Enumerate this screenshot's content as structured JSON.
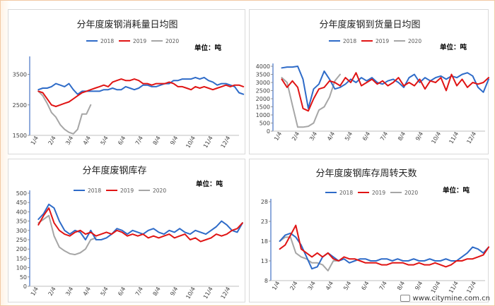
{
  "colors": {
    "s2018": "#2e6bc8",
    "s2019": "#e01414",
    "s2020": "#a6a6a6"
  },
  "watermark": {
    "text": "www.citymine.com.cn",
    "icon": "citymine-logo-icon"
  },
  "chart_data": [
    {
      "id": "consumption",
      "type": "line",
      "title": "分年度废钢消耗量日均图",
      "unit": "单位：吨",
      "xlabel": "",
      "ylabel": "",
      "categories": [
        "1/4",
        "2/4",
        "3/4",
        "4/4",
        "5/4",
        "6/4",
        "7/4",
        "8/4",
        "9/4",
        "10/4",
        "11/4",
        "12/4"
      ],
      "yticks": [
        1500,
        2500,
        3500
      ],
      "ylim": [
        1500,
        4000
      ],
      "grid": false,
      "legend": "top",
      "series": [
        {
          "name": "2018",
          "x": [
            0,
            0.25,
            0.5,
            0.75,
            1,
            1.25,
            1.5,
            1.75,
            2,
            2.25,
            2.5,
            2.75,
            3,
            3.25,
            3.5,
            3.75,
            4,
            4.25,
            4.5,
            4.75,
            5,
            5.25,
            5.5,
            5.75,
            6,
            6.25,
            6.5,
            6.75,
            7,
            7.25,
            7.5,
            7.75,
            8,
            8.25,
            8.5,
            8.75,
            9,
            9.25,
            9.5,
            9.75,
            10,
            10.25,
            10.5,
            10.75,
            11,
            11.25,
            11.5,
            11.75
          ],
          "values": [
            3000,
            3050,
            3050,
            3100,
            3200,
            3150,
            3100,
            3200,
            3000,
            2850,
            2950,
            2950,
            2950,
            2950,
            2950,
            3000,
            3000,
            3050,
            3000,
            3000,
            3100,
            3050,
            3000,
            3050,
            3150,
            3150,
            3100,
            3100,
            3150,
            3200,
            3200,
            3300,
            3300,
            3350,
            3350,
            3350,
            3400,
            3350,
            3400,
            3300,
            3250,
            3150,
            3200,
            3200,
            3150,
            3100,
            2900,
            2850
          ]
        },
        {
          "name": "2019",
          "x": [
            0,
            0.25,
            0.5,
            0.75,
            1,
            1.25,
            1.5,
            1.75,
            2,
            2.25,
            2.5,
            2.75,
            3,
            3.25,
            3.5,
            3.75,
            4,
            4.25,
            4.5,
            4.75,
            5,
            5.25,
            5.5,
            5.75,
            6,
            6.25,
            6.5,
            6.75,
            7,
            7.25,
            7.5,
            7.75,
            8,
            8.25,
            8.5,
            8.75,
            9,
            9.25,
            9.5,
            9.75,
            10,
            10.25,
            10.5,
            10.75,
            11,
            11.25,
            11.5,
            11.75
          ],
          "values": [
            2950,
            2900,
            2700,
            2500,
            2450,
            2500,
            2550,
            2600,
            2700,
            2800,
            2900,
            2950,
            3000,
            3050,
            3100,
            3150,
            3100,
            3250,
            3300,
            3350,
            3300,
            3300,
            3350,
            3300,
            3200,
            3200,
            3150,
            3200,
            3200,
            3200,
            3250,
            3200,
            3100,
            3100,
            3050,
            3000,
            3100,
            3050,
            3100,
            3050,
            3000,
            3050,
            3100,
            3150,
            3100,
            3150,
            3150,
            3100
          ]
        },
        {
          "name": "2020",
          "x": [
            0,
            0.25,
            0.5,
            0.75,
            1,
            1.25,
            1.5,
            1.75,
            2,
            2.25,
            2.5,
            2.75,
            3
          ],
          "values": [
            2950,
            2800,
            2550,
            2250,
            2100,
            1850,
            1700,
            1600,
            1550,
            1700,
            2200,
            2200,
            2500
          ]
        }
      ]
    },
    {
      "id": "arrivals",
      "type": "line",
      "title": "分年度废钢到货量日均图",
      "unit": "单位：吨",
      "xlabel": "",
      "ylabel": "",
      "categories": [
        "1/4",
        "2/4",
        "3/4",
        "4/4",
        "5/4",
        "6/4",
        "7/4",
        "8/4",
        "9/4",
        "10/4",
        "11/4",
        "12/4"
      ],
      "yticks": [
        0,
        500,
        1000,
        1500,
        2000,
        2500,
        3000,
        3500,
        4000
      ],
      "ylim": [
        0,
        4000
      ],
      "grid": false,
      "legend": "top",
      "series": [
        {
          "name": "2018",
          "x": [
            0,
            0.3,
            0.6,
            0.9,
            1.2,
            1.5,
            1.8,
            2.1,
            2.4,
            2.7,
            3,
            3.3,
            3.6,
            3.9,
            4.2,
            4.5,
            4.8,
            5.1,
            5.4,
            5.7,
            6,
            6.3,
            6.6,
            6.9,
            7.2,
            7.5,
            7.8,
            8.1,
            8.4,
            8.7,
            9,
            9.3,
            9.6,
            9.9,
            10.2,
            10.5,
            10.8,
            11.1,
            11.4,
            11.7
          ],
          "values": [
            3900,
            3950,
            3950,
            4000,
            3200,
            1400,
            2600,
            2900,
            3700,
            3200,
            2600,
            2700,
            2900,
            3200,
            3000,
            3300,
            3100,
            3300,
            3000,
            2900,
            3100,
            3200,
            3000,
            2700,
            3300,
            3500,
            3000,
            3300,
            3100,
            3300,
            3400,
            3200,
            3400,
            3300,
            3500,
            3600,
            3400,
            2700,
            2400,
            3200
          ]
        },
        {
          "name": "2019",
          "x": [
            0,
            0.3,
            0.6,
            0.9,
            1.2,
            1.5,
            1.8,
            2.1,
            2.4,
            2.7,
            3,
            3.3,
            3.6,
            3.9,
            4.2,
            4.5,
            4.8,
            5.1,
            5.4,
            5.7,
            6,
            6.3,
            6.6,
            6.9,
            7.2,
            7.5,
            7.8,
            8.1,
            8.4,
            8.7,
            9,
            9.3,
            9.6,
            9.9,
            10.2,
            10.5,
            10.8,
            11.1,
            11.4,
            11.7
          ],
          "values": [
            3200,
            2700,
            3100,
            2700,
            1400,
            1250,
            2000,
            2600,
            2700,
            3100,
            3000,
            2800,
            3300,
            3000,
            3600,
            2800,
            3000,
            3200,
            2900,
            3100,
            2800,
            3000,
            3300,
            2800,
            3000,
            2800,
            3200,
            2600,
            3100,
            3000,
            3300,
            2500,
            3500,
            2800,
            3200,
            2700,
            3000,
            2900,
            3000,
            3300
          ]
        },
        {
          "name": "2020",
          "x": [
            0,
            0.3,
            0.6,
            0.9,
            1.2,
            1.5,
            1.8,
            2.1,
            2.4,
            2.7,
            3,
            3.3
          ],
          "values": [
            3300,
            3000,
            1600,
            250,
            250,
            300,
            500,
            1300,
            1500,
            2100,
            3100,
            3500
          ]
        }
      ]
    },
    {
      "id": "inventory",
      "type": "line",
      "title": "分年度废钢库存",
      "unit": "单位：吨",
      "xlabel": "",
      "ylabel": "",
      "categories": [
        "1/4",
        "2/4",
        "3/4",
        "4/4",
        "5/4",
        "6/4",
        "7/4",
        "8/4",
        "9/4",
        "10/4",
        "11/4",
        "12/4"
      ],
      "yticks": [
        0,
        50,
        100,
        150,
        200,
        250,
        300,
        350,
        400,
        450,
        500
      ],
      "ylim": [
        0,
        500
      ],
      "grid": false,
      "legend": "top",
      "series": [
        {
          "name": "2018",
          "x": [
            0,
            0.3,
            0.6,
            0.9,
            1.2,
            1.5,
            1.8,
            2.1,
            2.4,
            2.7,
            3,
            3.3,
            3.6,
            3.9,
            4.2,
            4.5,
            4.8,
            5.1,
            5.4,
            5.7,
            6,
            6.3,
            6.6,
            6.9,
            7.2,
            7.5,
            7.8,
            8.1,
            8.4,
            8.7,
            9,
            9.3,
            9.6,
            9.9,
            10.2,
            10.5,
            10.8,
            11.1,
            11.4,
            11.7
          ],
          "values": [
            360,
            390,
            440,
            420,
            350,
            300,
            280,
            300,
            290,
            250,
            300,
            250,
            250,
            260,
            280,
            310,
            300,
            280,
            300,
            290,
            280,
            300,
            310,
            290,
            280,
            300,
            290,
            310,
            290,
            280,
            300,
            290,
            280,
            300,
            320,
            350,
            330,
            300,
            290,
            340
          ]
        },
        {
          "name": "2019",
          "x": [
            0,
            0.3,
            0.6,
            0.9,
            1.2,
            1.5,
            1.8,
            2.1,
            2.4,
            2.7,
            3,
            3.3,
            3.6,
            3.9,
            4.2,
            4.5,
            4.8,
            5.1,
            5.4,
            5.7,
            6,
            6.3,
            6.6,
            6.9,
            7.2,
            7.5,
            7.8,
            8.1,
            8.4,
            8.7,
            9,
            9.3,
            9.6,
            9.9,
            10.2,
            10.5,
            10.8,
            11.1,
            11.4,
            11.7
          ],
          "values": [
            330,
            380,
            420,
            340,
            300,
            280,
            270,
            290,
            300,
            280,
            290,
            270,
            280,
            290,
            280,
            300,
            290,
            270,
            280,
            270,
            280,
            260,
            270,
            260,
            270,
            280,
            260,
            270,
            280,
            250,
            260,
            240,
            250,
            260,
            280,
            270,
            280,
            300,
            310,
            340
          ]
        },
        {
          "name": "2020",
          "x": [
            0,
            0.3,
            0.6,
            0.9,
            1.2,
            1.5,
            1.8,
            2.1,
            2.4,
            2.7,
            3,
            3.3
          ],
          "values": [
            340,
            360,
            380,
            270,
            210,
            190,
            175,
            170,
            180,
            200,
            250,
            260
          ]
        }
      ]
    },
    {
      "id": "turnover",
      "type": "line",
      "title": "分年度废钢库存周转天数",
      "unit": "单位：吨",
      "xlabel": "",
      "ylabel": "",
      "categories": [
        "1/4",
        "2/4",
        "3/4",
        "4/4",
        "5/4",
        "6/4",
        "7/4",
        "8/4",
        "9/4",
        "10/4",
        "11/4",
        "12/4"
      ],
      "yticks": [
        8,
        13,
        18,
        23,
        28
      ],
      "ylim": [
        8,
        28
      ],
      "grid": false,
      "legend": "top",
      "series": [
        {
          "name": "2018",
          "x": [
            0,
            0.3,
            0.6,
            0.9,
            1.2,
            1.5,
            1.8,
            2.1,
            2.4,
            2.7,
            3,
            3.3,
            3.6,
            3.9,
            4.2,
            4.5,
            4.8,
            5.1,
            5.4,
            5.7,
            6,
            6.3,
            6.6,
            6.9,
            7.2,
            7.5,
            7.8,
            8.1,
            8.4,
            8.7,
            9,
            9.3,
            9.6,
            9.9,
            10.2,
            10.5,
            10.8,
            11.1,
            11.4,
            11.7
          ],
          "values": [
            18,
            19.5,
            20,
            19,
            17,
            14,
            11,
            11.5,
            14,
            15,
            14,
            13,
            13.5,
            12.5,
            13,
            13.5,
            13.5,
            13,
            13,
            13.5,
            13.5,
            13,
            13.5,
            13,
            13,
            13.5,
            13,
            13,
            13.5,
            13,
            13,
            13.5,
            13,
            13,
            14,
            15,
            16.5,
            16,
            15,
            16.5
          ]
        },
        {
          "name": "2019",
          "x": [
            0,
            0.3,
            0.6,
            0.9,
            1.2,
            1.5,
            1.8,
            2.1,
            2.4,
            2.7,
            3,
            3.3,
            3.6,
            3.9,
            4.2,
            4.5,
            4.8,
            5.1,
            5.4,
            5.7,
            6,
            6.3,
            6.6,
            6.9,
            7.2,
            7.5,
            7.8,
            8.1,
            8.4,
            8.7,
            9,
            9.3,
            9.6,
            9.9,
            10.2,
            10.5,
            10.8,
            11.1,
            11.4,
            11.7
          ],
          "values": [
            16,
            17,
            19.5,
            22,
            16,
            15,
            14,
            15,
            14,
            15,
            13.5,
            13,
            14,
            13.5,
            13.5,
            13,
            12.5,
            12.5,
            12.5,
            12,
            12,
            12.5,
            12.5,
            12.5,
            12,
            12,
            12.5,
            12,
            12,
            12.5,
            12,
            11.5,
            12,
            13,
            13,
            13.5,
            13.5,
            14,
            14.5,
            16.5
          ]
        },
        {
          "name": "2020",
          "x": [
            0,
            0.3,
            0.6,
            0.9,
            1.2,
            1.5,
            1.8,
            2.1,
            2.4,
            2.7,
            3,
            3.3
          ],
          "values": [
            18,
            19,
            19,
            15,
            14,
            13.5,
            12.5,
            12.5,
            12,
            10.5,
            13,
            13
          ]
        }
      ]
    }
  ]
}
